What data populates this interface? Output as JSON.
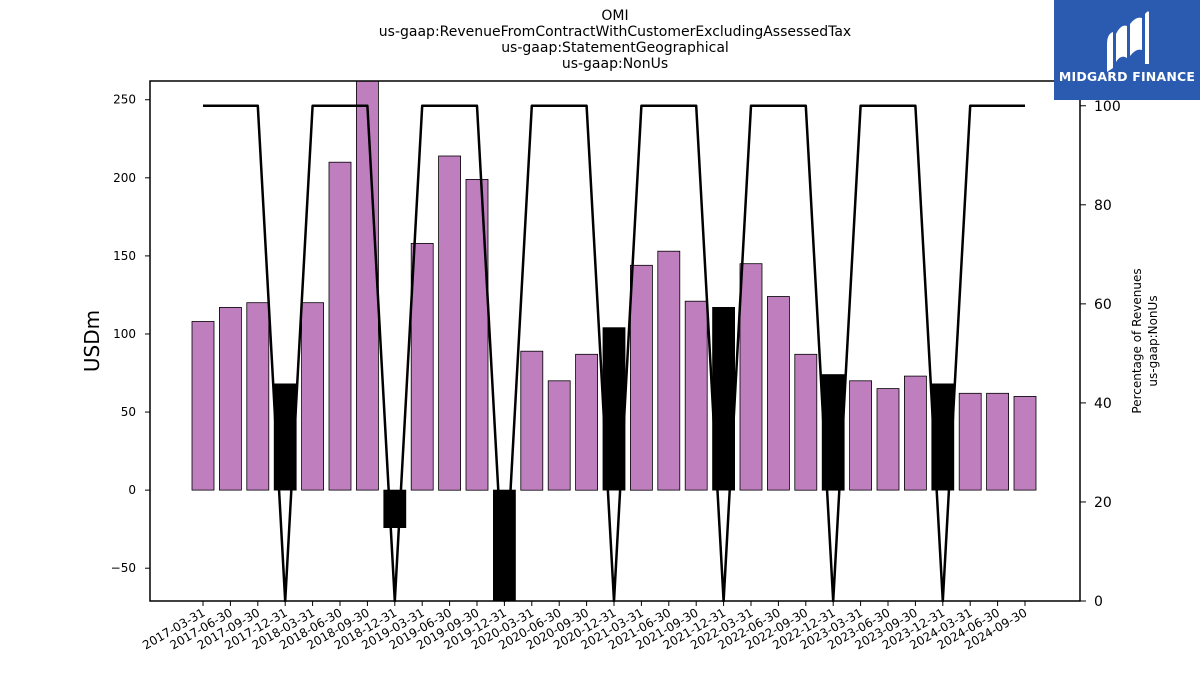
{
  "brand": {
    "name": "MIDGARD FINANCE",
    "bg_color": "#2b5bb0",
    "fg_color": "#ffffff"
  },
  "chart_data": {
    "type": "bar",
    "title_lines": [
      "OMI",
      "us-gaap:RevenueFromContractWithCustomerExcludingAssessedTax",
      "us-gaap:StatementGeographical",
      "us-gaap:NonUs"
    ],
    "ylabel": "USDm",
    "ylabel_right": [
      "Percentage of Revenues",
      "us-gaap:NonUs"
    ],
    "categories": [
      "2017-03-31",
      "2017-06-30",
      "2017-09-30",
      "2017-12-31",
      "2018-03-31",
      "2018-06-30",
      "2018-09-30",
      "2018-12-31",
      "2019-03-31",
      "2019-06-30",
      "2019-09-30",
      "2019-12-31",
      "2020-03-31",
      "2020-06-30",
      "2020-09-30",
      "2020-12-31",
      "2021-03-31",
      "2021-06-30",
      "2021-09-30",
      "2021-12-31",
      "2022-03-31",
      "2022-06-30",
      "2022-09-30",
      "2022-12-31",
      "2023-03-31",
      "2023-06-30",
      "2023-09-30",
      "2023-12-31",
      "2024-03-31",
      "2024-06-30",
      "2024-09-30"
    ],
    "values": [
      108,
      117,
      120,
      68,
      120,
      210,
      262,
      -24,
      158,
      214,
      199,
      -72,
      89,
      70,
      87,
      104,
      144,
      153,
      121,
      117,
      145,
      124,
      87,
      74,
      70,
      65,
      73,
      68,
      62,
      62,
      60
    ],
    "bar_colors": [
      "#bf7fbf",
      "#bf7fbf",
      "#bf7fbf",
      "#000000",
      "#bf7fbf",
      "#bf7fbf",
      "#bf7fbf",
      "#000000",
      "#bf7fbf",
      "#bf7fbf",
      "#bf7fbf",
      "#000000",
      "#bf7fbf",
      "#bf7fbf",
      "#bf7fbf",
      "#000000",
      "#bf7fbf",
      "#bf7fbf",
      "#bf7fbf",
      "#000000",
      "#bf7fbf",
      "#bf7fbf",
      "#bf7fbf",
      "#000000",
      "#bf7fbf",
      "#bf7fbf",
      "#bf7fbf",
      "#000000",
      "#bf7fbf",
      "#bf7fbf",
      "#bf7fbf"
    ],
    "percentage": [
      100,
      100,
      100,
      0,
      100,
      100,
      100,
      0,
      100,
      100,
      100,
      0,
      100,
      100,
      100,
      0,
      100,
      100,
      100,
      0,
      100,
      100,
      100,
      0,
      100,
      100,
      100,
      0,
      100,
      100,
      100
    ],
    "ylim": [
      -71,
      262
    ],
    "ylim_right": [
      0,
      105
    ],
    "yticks": [
      -50,
      0,
      50,
      100,
      150,
      200,
      250
    ],
    "yticks_right": [
      0,
      20,
      40,
      60,
      80,
      100
    ],
    "grid": false
  }
}
